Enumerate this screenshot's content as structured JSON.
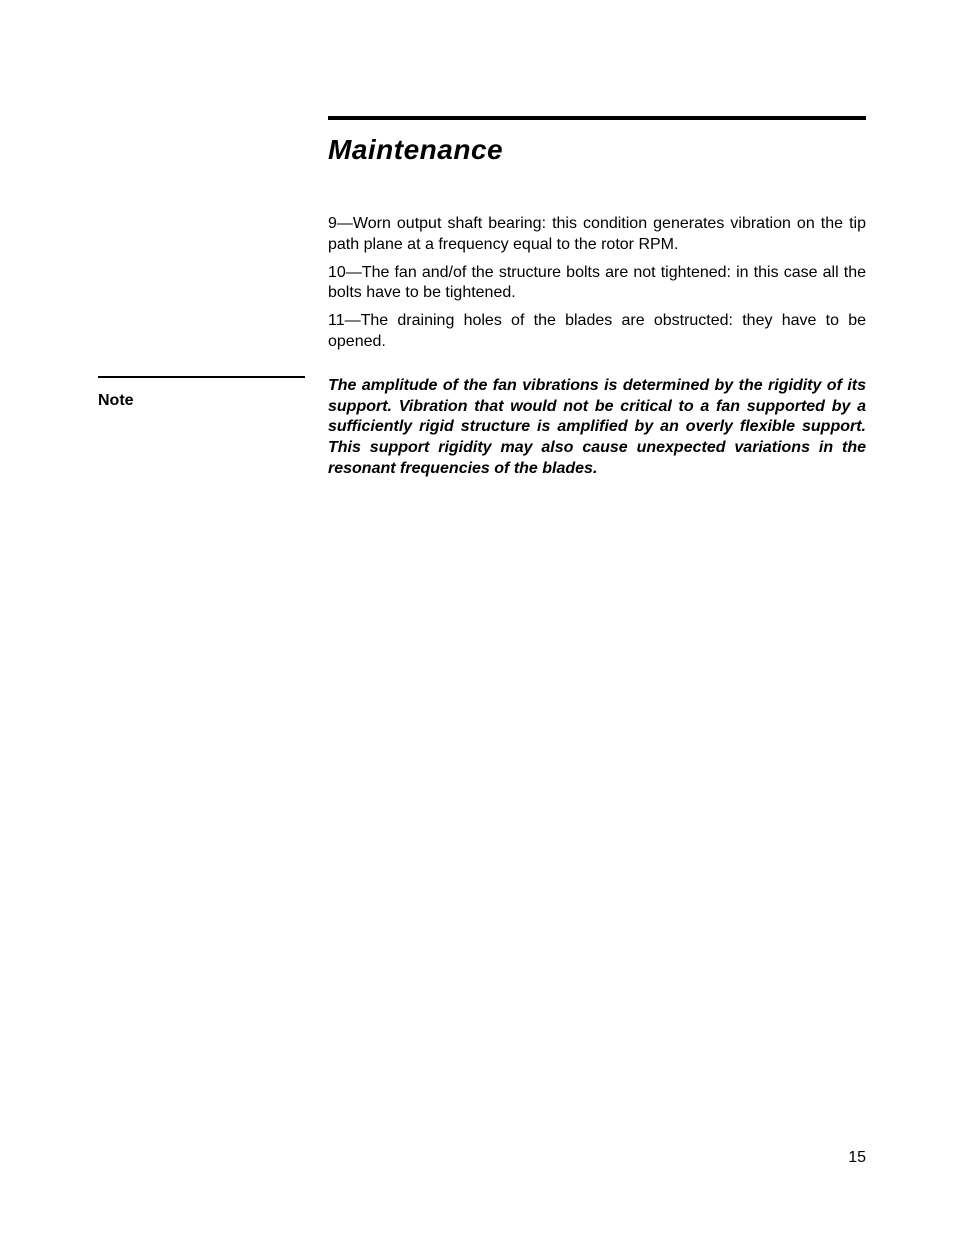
{
  "title": "Maintenance",
  "paragraphs": {
    "p1": "9—Worn output shaft bearing: this condition generates vibration on the tip path plane at a frequency equal to the rotor RPM.",
    "p2": "10—The fan and/of the structure bolts are not tightened: in this case all the bolts have to be tightened.",
    "p3": "11—The draining holes of the blades are obstructed: they have to be opened."
  },
  "note": {
    "label": "Note",
    "text": "The amplitude of the fan vibrations is determined by the rigidity of its support. Vibration that would not be critical to a fan supported by a sufficiently rigid structure is amplified by an overly flexible support. This support rigidity may also cause unexpected variations in the resonant frequencies of the blades."
  },
  "page_number": "15"
}
